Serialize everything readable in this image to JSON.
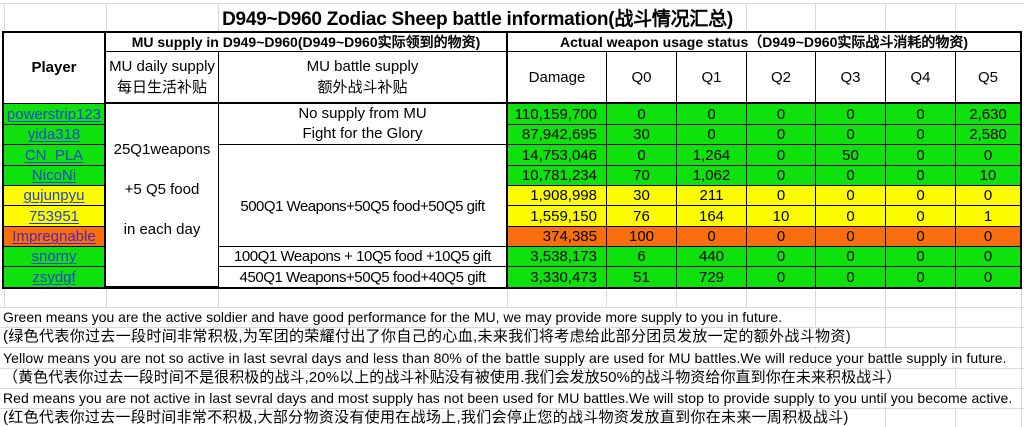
{
  "title": "D949~D960 Zodiac Sheep battle information(战斗情况汇总)",
  "table": {
    "header": {
      "player": "Player",
      "supply_group": "MU supply in D949~D960(D949~D960实际领到的物资)",
      "usage_group": "Actual weapon usage status（D949~D960实际战斗消耗的物资)",
      "daily_supply_line1": "MU daily supply",
      "daily_supply_line2": "每日生活补贴",
      "battle_supply_line1": "MU battle supply",
      "battle_supply_line2": "额外战斗补贴",
      "damage": "Damage",
      "q0": "Q0",
      "q1": "Q1",
      "q2": "Q2",
      "q3": "Q3",
      "q4": "Q4",
      "q5": "Q5"
    },
    "daily_supply_note": {
      "line1": "25Q1weapons",
      "line2": "+5 Q5 food",
      "line3": "in each day"
    },
    "battle_supply": {
      "rows_1_2_line1": "No supply from MU",
      "rows_1_2_line2": "Fight for the Glory",
      "rows_3_7": "500Q1 Weapons+50Q5 food+50Q5 gift",
      "row_8": "100Q1 Weapons + 10Q5 food +10Q5 gift",
      "row_9": "450Q1 Weapons+50Q5 food+40Q5 gift"
    },
    "rows": [
      {
        "player": "powerstrip123",
        "status": "green",
        "link_color": "blue",
        "damage": "110,159,700",
        "q0": "0",
        "q1": "0",
        "q2": "0",
        "q3": "0",
        "q4": "0",
        "q5": "2,630"
      },
      {
        "player": "yida318",
        "status": "green",
        "link_color": "blue",
        "damage": "87,942,695",
        "q0": "30",
        "q1": "0",
        "q2": "0",
        "q3": "0",
        "q4": "0",
        "q5": "2,580"
      },
      {
        "player": "CN_PLA",
        "status": "green",
        "link_color": "blue",
        "damage": "14,753,046",
        "q0": "0",
        "q1": "1,264",
        "q2": "0",
        "q3": "50",
        "q4": "0",
        "q5": "0"
      },
      {
        "player": "NicoNi",
        "status": "green",
        "link_color": "blue",
        "damage": "10,781,234",
        "q0": "70",
        "q1": "1,062",
        "q2": "0",
        "q3": "0",
        "q4": "0",
        "q5": "10"
      },
      {
        "player": "gujunpyu",
        "status": "yellow",
        "link_color": "blue",
        "damage": "1,908,998",
        "q0": "30",
        "q1": "211",
        "q2": "0",
        "q3": "0",
        "q4": "0",
        "q5": "0"
      },
      {
        "player": "753951",
        "status": "yellow",
        "link_color": "blue",
        "damage": "1,559,150",
        "q0": "76",
        "q1": "164",
        "q2": "10",
        "q3": "0",
        "q4": "0",
        "q5": "1"
      },
      {
        "player": "Impregnable",
        "status": "orange",
        "link_color": "purple",
        "damage": "374,385",
        "q0": "100",
        "q1": "0",
        "q2": "0",
        "q3": "0",
        "q4": "0",
        "q5": "0"
      },
      {
        "player": "snorny",
        "status": "green",
        "link_color": "blue",
        "damage": "3,538,173",
        "q0": "6",
        "q1": "440",
        "q2": "0",
        "q3": "0",
        "q4": "0",
        "q5": "0"
      },
      {
        "player": "zsydgf",
        "status": "green",
        "link_color": "blue",
        "damage": "3,330,473",
        "q0": "51",
        "q1": "729",
        "q2": "0",
        "q3": "0",
        "q4": "0",
        "q5": "0"
      }
    ]
  },
  "legend": {
    "green_en": "Green means you are the active soldier and have good performance for the MU, we may provide more supply to you in future.",
    "green_cn": "(绿色代表你过去一段时间非常积极,为军团的荣耀付出了你自己的心血,未来我们将考虑给此部分团员发放一定的额外战斗物资)",
    "yellow_en": "Yellow means you are not so active in last sevral days and less than 80% of the battle supply are used for MU battles.We will reduce your battle supply in future.",
    "yellow_cn": "（黄色代表你过去一段时间不是很积极的战斗,20%以上的战斗补贴没有被使用.我们会发放50%的战斗物资给你直到你在未来积极战斗）",
    "red_en": "Red means you are not active in last sevral days and most supply has not been used for MU battles.We will stop to provide supply to you until you become active.",
    "red_cn": "(红色代表你过去一段时间非常不积极,大部分物资没有使用在战场上,我们会停止您的战斗物资发放直到你在未来一周积极战斗)"
  },
  "colors": {
    "active_green": "#0EE10B",
    "warning_yellow": "#FDFD00",
    "inactive_orange": "#F96E0C",
    "link_blue": "#2442D6",
    "link_purple": "#5226BD",
    "border_black": "#000000",
    "gridline_gray": "#D9D9D9"
  }
}
